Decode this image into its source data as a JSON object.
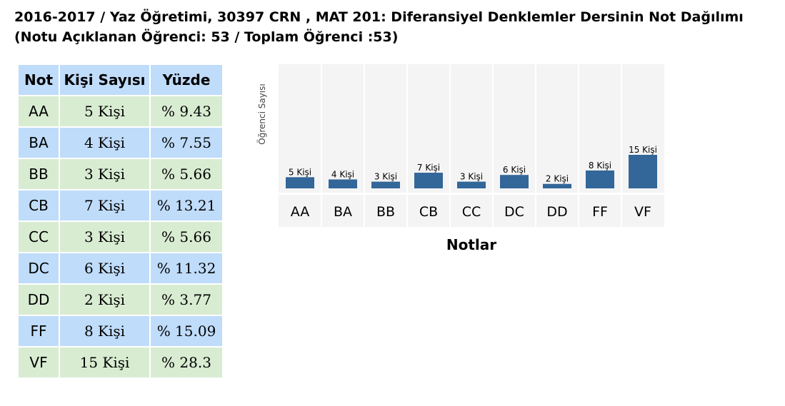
{
  "header": {
    "line1": "2016-2017 / Yaz Öğretimi, 30397 CRN , MAT 201: Diferansiyel Denklemler Dersinin Not Dağılımı",
    "line2": "(Notu Açıklanan Öğrenci: 53 / Toplam Öğrenci :53)"
  },
  "table": {
    "headers": {
      "grade": "Not",
      "count": "Kişi Sayısı",
      "percent": "Yüzde"
    },
    "rows": [
      {
        "grade": "AA",
        "count": "5 Kişi",
        "percent": "% 9.43"
      },
      {
        "grade": "BA",
        "count": "4 Kişi",
        "percent": "% 7.55"
      },
      {
        "grade": "BB",
        "count": "3 Kişi",
        "percent": "% 5.66"
      },
      {
        "grade": "CB",
        "count": "7 Kişi",
        "percent": "% 13.21"
      },
      {
        "grade": "CC",
        "count": "3 Kişi",
        "percent": "% 5.66"
      },
      {
        "grade": "DC",
        "count": "6 Kişi",
        "percent": "% 11.32"
      },
      {
        "grade": "DD",
        "count": "2 Kişi",
        "percent": "% 3.77"
      },
      {
        "grade": "FF",
        "count": "8 Kişi",
        "percent": "% 15.09"
      },
      {
        "grade": "VF",
        "count": "15 Kişi",
        "percent": "% 28.3"
      }
    ]
  },
  "colors": {
    "bar": "#336699",
    "header_bg": "#bfdcfa",
    "row_green": "#d8ecd2",
    "row_blue": "#bfdcfa",
    "plot_bg": "#f4f4f4"
  },
  "chart_data": {
    "type": "bar",
    "categories": [
      "AA",
      "BA",
      "BB",
      "CB",
      "CC",
      "DC",
      "DD",
      "FF",
      "VF"
    ],
    "values": [
      5,
      4,
      3,
      7,
      3,
      6,
      2,
      8,
      15
    ],
    "data_labels": [
      "5 Kişi",
      "4 Kişi",
      "3 Kişi",
      "7 Kişi",
      "3 Kişi",
      "6 Kişi",
      "2 Kişi",
      "8 Kişi",
      "15 Kişi"
    ],
    "title": "",
    "xlabel": "Notlar",
    "ylabel": "Öğrenci Sayısı",
    "ylim": [
      0,
      15
    ],
    "grid": false,
    "legend": "none"
  }
}
